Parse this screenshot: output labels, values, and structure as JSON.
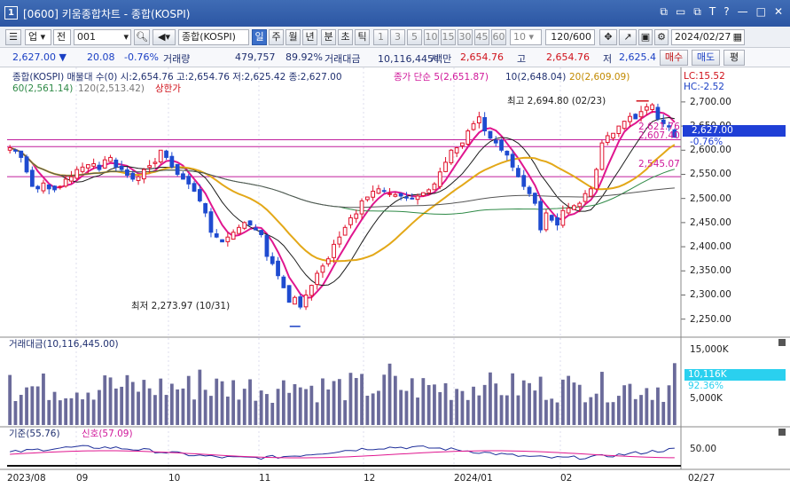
{
  "window": {
    "number": "1",
    "title": "[0600] 키움종합차트 - 종합(KOSPI)",
    "controls": [
      "⧉",
      "▭",
      "⧉",
      "T",
      "?",
      "—",
      "□",
      "✕"
    ]
  },
  "toolbar": {
    "market": "업",
    "type": "전",
    "code": "001",
    "name": "종합(KOSPI)",
    "periods": [
      "일",
      "주",
      "월",
      "년",
      "분",
      "초",
      "틱"
    ],
    "active_period": "일",
    "intervals": [
      "1",
      "3",
      "5",
      "10",
      "15",
      "30",
      "45",
      "60"
    ],
    "interval_value": "10",
    "count": "120/600",
    "date": "2024/02/27"
  },
  "quote": {
    "price": "2,627.00",
    "arrow": "▼",
    "change": "20.08",
    "change_pct": "-0.76%",
    "volume_label": "거래량",
    "volume": "479,757",
    "volume_pct": "89.92%",
    "amount_label": "거래대금",
    "amount": "10,116,445백만",
    "open_label": "시",
    "open": "2,654.76",
    "high_label": "고",
    "high": "2,654.76",
    "low_label": "저",
    "low": "2,625.4",
    "buttons": [
      "매수",
      "매도",
      "평"
    ]
  },
  "legend": {
    "main": "종합(KOSPI) 매물대 수(0)  시:2,654.76 고:2,654.76 저:2,625.42 종:2,627.00",
    "ma5": "종가 단순 5(2,651.87)",
    "ma10": "10(2,648.04)",
    "ma20": "20(2,609.09)",
    "ma60": "60(2,561.14)",
    "ma120": "120(2,513.42)",
    "upper": "상한가",
    "lc": "LC:15.52",
    "hc": "HC:-2.52"
  },
  "annotations": {
    "max": "최고 2,694.80 (02/23)",
    "min": "최저 2,273.97 (10/31)"
  },
  "price_tags": {
    "current": "2,627.00",
    "pct": "-0.76%",
    "line1": "2,621.76",
    "line2": "2,607.40",
    "line3": "2,545.07"
  },
  "price_axis": [
    "2,700.00",
    "2,650.00",
    "2,600.00",
    "2,550.00",
    "2,500.00",
    "2,450.00",
    "2,400.00",
    "2,350.00",
    "2,300.00",
    "2,250.00"
  ],
  "volume_panel": {
    "title": "거래대금(10,116,445.00)",
    "axis": [
      "15,000K",
      "5,000K"
    ],
    "current": "10,116K",
    "pct": "92.36%"
  },
  "osc_panel": {
    "kijun": "기준(55.76)",
    "signal": "신호(57.09)",
    "axis": "50.00"
  },
  "date_axis": [
    "2023/08",
    "09",
    "10",
    "11",
    "12",
    "2024/01",
    "02",
    "02/27"
  ],
  "colors": {
    "up": "#e0102b",
    "down": "#1f4bd0",
    "ma5": "#e0168f",
    "ma10": "#1b1b1b",
    "ma20": "#e3a818",
    "ma60": "#2f8a47",
    "ma120": "#555555",
    "pivot": "#c01e9c",
    "vol": "#6a6a9a"
  },
  "chart_data": {
    "type": "candlestick",
    "closes": [
      2605,
      2598,
      2585,
      2555,
      2525,
      2520,
      2532,
      2520,
      2518,
      2525,
      2540,
      2545,
      2560,
      2565,
      2570,
      2572,
      2560,
      2580,
      2585,
      2565,
      2560,
      2548,
      2540,
      2545,
      2560,
      2568,
      2575,
      2600,
      2585,
      2565,
      2550,
      2540,
      2530,
      2515,
      2495,
      2470,
      2430,
      2420,
      2410,
      2420,
      2430,
      2440,
      2450,
      2445,
      2435,
      2425,
      2380,
      2365,
      2340,
      2315,
      2285,
      2295,
      2275,
      2300,
      2320,
      2345,
      2360,
      2375,
      2405,
      2420,
      2440,
      2460,
      2468,
      2495,
      2503,
      2515,
      2520,
      2515,
      2510,
      2508,
      2505,
      2502,
      2500,
      2505,
      2512,
      2518,
      2530,
      2555,
      2575,
      2600,
      2605,
      2615,
      2640,
      2655,
      2669,
      2640,
      2625,
      2615,
      2600,
      2590,
      2565,
      2545,
      2525,
      2510,
      2490,
      2435,
      2470,
      2455,
      2445,
      2475,
      2480,
      2485,
      2490,
      2510,
      2520,
      2560,
      2615,
      2630,
      2635,
      2650,
      2660,
      2670,
      2665,
      2680,
      2690,
      2694,
      2665,
      2655,
      2648,
      2627
    ],
    "ylim": [
      2220,
      2720
    ],
    "volume_axis": [
      "15,000K",
      "5,000K"
    ],
    "osc_axis": "50.00"
  }
}
